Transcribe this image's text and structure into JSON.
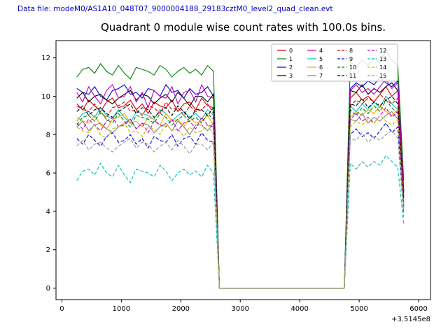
{
  "header": {
    "data_file_label": "Data file: modeM0/AS1A10_048T07_9000004188_29183cztM0_level2_quad_clean.evt"
  },
  "chart_data": {
    "type": "line",
    "title": "Quadrant 0 module wise count rates with 100.0s bins.",
    "xlabel": "",
    "ylabel": "",
    "x_offset_label": "+3.5145e8",
    "xlim": [
      -100,
      6200
    ],
    "ylim": [
      -0.6,
      12.9
    ],
    "x_ticks": [
      0,
      1000,
      2000,
      3000,
      4000,
      5000,
      6000
    ],
    "y_ticks": [
      0,
      2,
      4,
      6,
      8,
      10,
      12
    ],
    "grid": false,
    "legend_position": "upper center",
    "legend_columns": 4,
    "x": [
      250,
      350,
      450,
      550,
      650,
      750,
      850,
      950,
      1050,
      1150,
      1250,
      1350,
      1450,
      1550,
      1650,
      1750,
      1850,
      1950,
      2050,
      2150,
      2250,
      2350,
      2450,
      2550,
      2650,
      2750,
      2850,
      2950,
      3050,
      3150,
      3250,
      3350,
      3450,
      3550,
      3650,
      3750,
      3850,
      3950,
      4050,
      4150,
      4250,
      4350,
      4450,
      4550,
      4650,
      4750,
      4850,
      4950,
      5050,
      5150,
      5250,
      5350,
      5450,
      5550,
      5650,
      5750
    ],
    "series": [
      {
        "name": "0",
        "color": "#e00000",
        "dashed": false,
        "values": [
          9.6,
          9.3,
          9.8,
          9.5,
          9.2,
          9.7,
          9.9,
          9.4,
          9.5,
          9.8,
          9.3,
          9.6,
          9.1,
          9.7,
          9.5,
          9.4,
          9.8,
          9.2,
          9.6,
          9.7,
          9.3,
          9.9,
          9.5,
          9.4,
          0,
          0,
          0,
          0,
          0,
          0,
          0,
          0,
          0,
          0,
          0,
          0,
          0,
          0,
          0,
          0,
          0,
          0,
          0,
          0,
          0,
          0,
          9.9,
          10.2,
          9.8,
          10.0,
          9.7,
          10.1,
          10.5,
          10.0,
          10.3,
          4.8
        ]
      },
      {
        "name": "1",
        "color": "#008000",
        "dashed": false,
        "values": [
          11.0,
          11.4,
          11.5,
          11.2,
          11.7,
          11.3,
          11.1,
          11.6,
          11.2,
          10.9,
          11.5,
          11.4,
          11.3,
          11.1,
          11.6,
          11.4,
          11.0,
          11.3,
          11.5,
          11.2,
          11.4,
          11.1,
          11.6,
          11.3,
          0,
          0,
          0,
          0,
          0,
          0,
          0,
          0,
          0,
          0,
          0,
          0,
          0,
          0,
          0,
          0,
          0,
          0,
          0,
          0,
          0,
          0,
          11.8,
          11.5,
          11.9,
          11.6,
          12.0,
          11.7,
          12.4,
          11.9,
          11.6,
          5.6
        ]
      },
      {
        "name": "2",
        "color": "#0000e0",
        "dashed": false,
        "values": [
          10.4,
          10.2,
          10.1,
          10.5,
          10.0,
          9.8,
          10.3,
          10.4,
          10.6,
          10.1,
          10.2,
          9.9,
          10.4,
          10.3,
          10.0,
          10.6,
          10.2,
          10.3,
          9.9,
          10.4,
          10.1,
          10.2,
          10.5,
          10.0,
          0,
          0,
          0,
          0,
          0,
          0,
          0,
          0,
          0,
          0,
          0,
          0,
          0,
          0,
          0,
          0,
          0,
          0,
          0,
          0,
          0,
          0,
          10.4,
          10.7,
          10.5,
          10.8,
          10.6,
          11.0,
          10.7,
          10.5,
          10.8,
          5.1
        ]
      },
      {
        "name": "3",
        "color": "#000000",
        "dashed": false,
        "values": [
          9.9,
          10.2,
          9.7,
          10.0,
          10.1,
          9.8,
          9.6,
          9.9,
          10.1,
          10.3,
          9.8,
          10.1,
          10.0,
          9.6,
          9.9,
          10.1,
          9.7,
          10.2,
          9.9,
          9.5,
          10.0,
          10.0,
          9.7,
          10.1,
          0,
          0,
          0,
          0,
          0,
          0,
          0,
          0,
          0,
          0,
          0,
          0,
          0,
          0,
          0,
          0,
          0,
          0,
          0,
          0,
          0,
          0,
          10.3,
          10.2,
          10.6,
          10.1,
          10.4,
          10.2,
          10.5,
          10.7,
          10.3,
          5.0
        ]
      },
      {
        "name": "4",
        "color": "#bf00bf",
        "dashed": false,
        "values": [
          10.2,
          9.7,
          10.5,
          10.0,
          9.6,
          10.3,
          10.6,
          9.9,
          10.0,
          10.5,
          9.7,
          10.2,
          9.4,
          10.3,
          10.0,
          9.9,
          10.5,
          9.6,
          10.2,
          10.3,
          9.7,
          10.6,
          10.0,
          9.9,
          0,
          0,
          0,
          0,
          0,
          0,
          0,
          0,
          0,
          0,
          0,
          0,
          0,
          0,
          0,
          0,
          0,
          0,
          0,
          0,
          0,
          0,
          10.3,
          10.6,
          10.2,
          10.4,
          10.1,
          10.5,
          10.9,
          10.4,
          10.7,
          5.0
        ]
      },
      {
        "name": "5",
        "color": "#00bfbf",
        "dashed": false,
        "values": [
          8.7,
          9.1,
          9.2,
          8.9,
          9.4,
          9.0,
          8.8,
          9.3,
          8.9,
          8.6,
          9.2,
          9.1,
          9.0,
          8.8,
          9.3,
          9.1,
          8.7,
          9.0,
          9.2,
          8.9,
          9.1,
          8.8,
          9.3,
          9.0,
          0,
          0,
          0,
          0,
          0,
          0,
          0,
          0,
          0,
          0,
          0,
          0,
          0,
          0,
          0,
          0,
          0,
          0,
          0,
          0,
          0,
          0,
          9.5,
          9.2,
          9.6,
          9.3,
          9.7,
          9.4,
          10.0,
          9.6,
          9.3,
          4.5
        ]
      },
      {
        "name": "6",
        "color": "#ffa500",
        "dashed": false,
        "values": [
          8.9,
          8.7,
          8.6,
          9.0,
          8.5,
          8.3,
          8.8,
          8.9,
          9.1,
          8.6,
          8.7,
          8.4,
          8.9,
          8.8,
          8.5,
          9.1,
          8.7,
          8.8,
          8.4,
          8.9,
          8.6,
          8.7,
          9.0,
          8.5,
          0,
          0,
          0,
          0,
          0,
          0,
          0,
          0,
          0,
          0,
          0,
          0,
          0,
          0,
          0,
          0,
          0,
          0,
          0,
          0,
          0,
          0,
          8.9,
          9.2,
          9.0,
          9.3,
          9.1,
          9.5,
          9.2,
          9.0,
          9.3,
          4.4
        ]
      },
      {
        "name": "7",
        "color": "#808080",
        "dashed": false,
        "values": [
          8.4,
          8.7,
          8.2,
          8.5,
          8.6,
          8.3,
          8.1,
          8.4,
          8.6,
          8.8,
          8.3,
          8.6,
          8.5,
          8.1,
          8.4,
          8.6,
          8.2,
          8.7,
          8.4,
          8.0,
          8.5,
          8.5,
          8.2,
          8.6,
          0,
          0,
          0,
          0,
          0,
          0,
          0,
          0,
          0,
          0,
          0,
          0,
          0,
          0,
          0,
          0,
          0,
          0,
          0,
          0,
          0,
          0,
          8.8,
          8.7,
          9.1,
          8.6,
          8.9,
          8.7,
          9.0,
          9.2,
          8.8,
          4.2
        ]
      },
      {
        "name": "8",
        "color": "#e00000",
        "dashed": true,
        "values": [
          9.5,
          9.3,
          9.2,
          9.6,
          9.1,
          8.9,
          9.4,
          9.5,
          9.7,
          9.2,
          9.3,
          9.0,
          9.5,
          9.4,
          9.1,
          9.7,
          9.3,
          9.4,
          9.0,
          9.5,
          9.2,
          9.3,
          9.6,
          9.1,
          0,
          0,
          0,
          0,
          0,
          0,
          0,
          0,
          0,
          0,
          0,
          0,
          0,
          0,
          0,
          0,
          0,
          0,
          0,
          0,
          0,
          0,
          9.5,
          9.8,
          9.6,
          9.9,
          9.7,
          10.1,
          9.8,
          9.6,
          9.9,
          4.7
        ]
      },
      {
        "name": "9",
        "color": "#0000e0",
        "dashed": true,
        "values": [
          7.8,
          7.5,
          8.0,
          7.7,
          7.4,
          7.9,
          8.1,
          7.6,
          7.7,
          8.0,
          7.5,
          7.8,
          7.3,
          7.9,
          7.7,
          7.6,
          8.0,
          7.4,
          7.8,
          7.9,
          7.5,
          8.1,
          7.7,
          7.6,
          0,
          0,
          0,
          0,
          0,
          0,
          0,
          0,
          0,
          0,
          0,
          0,
          0,
          0,
          0,
          0,
          0,
          0,
          0,
          0,
          0,
          0,
          8.0,
          8.3,
          7.9,
          8.1,
          7.8,
          8.2,
          8.6,
          8.1,
          8.4,
          3.9
        ]
      },
      {
        "name": "10",
        "color": "#008000",
        "dashed": true,
        "values": [
          8.5,
          8.9,
          9.0,
          8.7,
          9.2,
          8.8,
          8.6,
          9.1,
          8.7,
          8.4,
          9.0,
          8.9,
          8.8,
          8.6,
          9.1,
          8.9,
          8.5,
          8.8,
          9.0,
          8.7,
          8.9,
          8.6,
          9.1,
          8.8,
          0,
          0,
          0,
          0,
          0,
          0,
          0,
          0,
          0,
          0,
          0,
          0,
          0,
          0,
          0,
          0,
          0,
          0,
          0,
          0,
          0,
          0,
          9.3,
          9.0,
          9.4,
          9.1,
          9.5,
          9.2,
          9.8,
          9.4,
          9.1,
          4.4
        ]
      },
      {
        "name": "11",
        "color": "#000000",
        "dashed": true,
        "values": [
          9.2,
          9.5,
          9.0,
          9.3,
          9.4,
          9.1,
          8.9,
          9.2,
          9.4,
          9.6,
          9.1,
          9.4,
          9.3,
          8.9,
          9.2,
          9.4,
          9.0,
          9.5,
          9.2,
          8.8,
          9.3,
          9.3,
          9.0,
          9.4,
          0,
          0,
          0,
          0,
          0,
          0,
          0,
          0,
          0,
          0,
          0,
          0,
          0,
          0,
          0,
          0,
          0,
          0,
          0,
          0,
          0,
          0,
          9.6,
          9.5,
          9.9,
          9.4,
          9.7,
          9.5,
          9.8,
          10.0,
          9.6,
          4.6
        ]
      },
      {
        "name": "12",
        "color": "#bf00bf",
        "dashed": true,
        "values": [
          8.6,
          8.3,
          8.8,
          8.5,
          8.2,
          8.7,
          8.9,
          8.4,
          8.5,
          8.8,
          8.3,
          8.6,
          8.1,
          8.7,
          8.5,
          8.4,
          8.8,
          8.2,
          8.6,
          8.7,
          8.3,
          8.9,
          8.5,
          8.4,
          0,
          0,
          0,
          0,
          0,
          0,
          0,
          0,
          0,
          0,
          0,
          0,
          0,
          0,
          0,
          0,
          0,
          0,
          0,
          0,
          0,
          0,
          8.8,
          9.1,
          8.7,
          8.9,
          8.6,
          9.0,
          9.4,
          8.9,
          9.2,
          4.3
        ]
      },
      {
        "name": "13",
        "color": "#00bfbf",
        "dashed": true,
        "values": [
          5.6,
          6.1,
          6.2,
          5.9,
          6.5,
          6.0,
          5.8,
          6.4,
          5.9,
          5.5,
          6.2,
          6.1,
          6.0,
          5.8,
          6.4,
          6.1,
          5.6,
          6.0,
          6.2,
          5.9,
          6.1,
          5.8,
          6.4,
          6.0,
          0,
          0,
          0,
          0,
          0,
          0,
          0,
          0,
          0,
          0,
          0,
          0,
          0,
          0,
          0,
          0,
          0,
          0,
          0,
          0,
          0,
          0,
          6.5,
          6.2,
          6.6,
          6.3,
          6.6,
          6.4,
          6.9,
          6.6,
          6.3,
          3.3
        ]
      },
      {
        "name": "14",
        "color": "#bfbf00",
        "dashed": true,
        "values": [
          8.4,
          8.2,
          8.1,
          8.5,
          8.0,
          7.8,
          8.3,
          8.4,
          8.6,
          8.1,
          8.2,
          7.9,
          8.4,
          8.3,
          8.0,
          8.6,
          8.2,
          8.3,
          7.9,
          8.4,
          8.1,
          8.2,
          8.5,
          8.0,
          0,
          0,
          0,
          0,
          0,
          0,
          0,
          0,
          0,
          0,
          0,
          0,
          0,
          0,
          0,
          0,
          0,
          0,
          0,
          0,
          0,
          0,
          8.4,
          8.7,
          8.5,
          8.8,
          8.6,
          9.0,
          8.7,
          8.5,
          8.8,
          4.1
        ]
      },
      {
        "name": "15",
        "color": "#999999",
        "dashed": true,
        "values": [
          7.4,
          7.7,
          7.2,
          7.5,
          7.6,
          7.3,
          7.1,
          7.4,
          7.6,
          7.8,
          7.3,
          7.6,
          7.5,
          7.1,
          7.4,
          7.6,
          7.2,
          7.7,
          7.4,
          7.0,
          7.5,
          7.5,
          7.2,
          7.6,
          0,
          0,
          0,
          0,
          0,
          0,
          0,
          0,
          0,
          0,
          0,
          0,
          0,
          0,
          0,
          0,
          0,
          0,
          0,
          0,
          0,
          0,
          7.8,
          7.7,
          8.1,
          7.6,
          7.9,
          7.7,
          8.0,
          8.2,
          7.8,
          3.7
        ]
      }
    ]
  }
}
